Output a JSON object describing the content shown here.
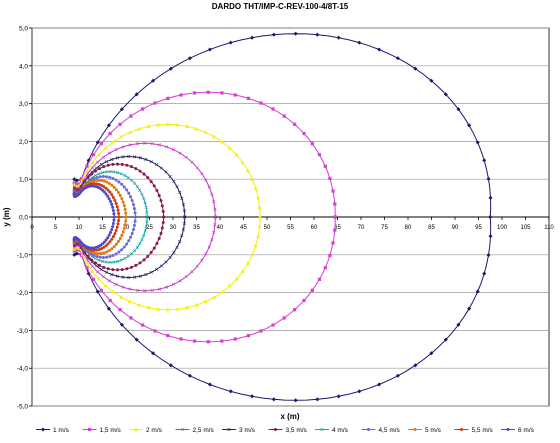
{
  "chart_data": {
    "type": "line",
    "title": "DARDO THT/IMP-C-REV-100-4/8T-15",
    "xlabel": "x (m)",
    "ylabel": "y (m)",
    "xlim": [
      0,
      110
    ],
    "ylim": [
      -5.0,
      5.0
    ],
    "x_ticks": [
      "0",
      "5",
      "10",
      "15",
      "20",
      "25",
      "30",
      "35",
      "40",
      "45",
      "50",
      "55",
      "60",
      "65",
      "70",
      "75",
      "80",
      "85",
      "90",
      "95",
      "100",
      "105",
      "110"
    ],
    "y_ticks": [
      "5,0",
      "4,0",
      "3,0",
      "2,0",
      "1,0",
      "0,0",
      "-1,0",
      "-2,0",
      "-3,0",
      "-4,0",
      "-5,0"
    ],
    "grid": "horizontal",
    "legend_position": "bottom",
    "series": [
      {
        "name": "1 m/s",
        "color": "#1a1a6e",
        "marker": "diamond",
        "x_start": 9,
        "y_start": 1.0,
        "x_max": 97.5,
        "x_at_y_max": 58,
        "y_max": 4.85
      },
      {
        "name": "1,5 m/s",
        "color": "#d43fd4",
        "marker": "square",
        "x_start": 9,
        "y_start": 0.9,
        "x_max": 64.5,
        "x_at_y_max": 38,
        "y_max": 3.3
      },
      {
        "name": "2 m/s",
        "color": "#f2f20a",
        "marker": "triangle",
        "x_start": 9,
        "y_start": 0.85,
        "x_max": 48.5,
        "x_at_y_max": 29,
        "y_max": 2.45
      },
      {
        "name": "2,5 m/s",
        "color": "#c03cc0",
        "marker": "x",
        "x_start": 9,
        "y_start": 0.8,
        "x_max": 39,
        "x_at_y_max": 24,
        "y_max": 1.95
      },
      {
        "name": "3 m/s",
        "color": "#2a2060",
        "marker": "asterisk",
        "x_start": 9,
        "y_start": 0.75,
        "x_max": 32.5,
        "x_at_y_max": 20.5,
        "y_max": 1.6
      },
      {
        "name": "3,5 m/s",
        "color": "#8a1a4a",
        "marker": "circle",
        "x_start": 9,
        "y_start": 0.72,
        "x_max": 28,
        "x_at_y_max": 18,
        "y_max": 1.4
      },
      {
        "name": "4 m/s",
        "color": "#1ea6a6",
        "marker": "plus",
        "x_start": 9,
        "y_start": 0.7,
        "x_max": 24.5,
        "x_at_y_max": 16.5,
        "y_max": 1.2
      },
      {
        "name": "4,5 m/s",
        "color": "#6a6ad8",
        "marker": "line",
        "x_start": 9,
        "y_start": 0.68,
        "x_max": 22,
        "x_at_y_max": 15,
        "y_max": 1.07
      },
      {
        "name": "5 m/s",
        "color": "#e07a10",
        "marker": "line",
        "x_start": 9,
        "y_start": 0.66,
        "x_max": 20,
        "x_at_y_max": 14,
        "y_max": 0.97
      },
      {
        "name": "5,5 m/s",
        "color": "#d03a10",
        "marker": "circle",
        "x_start": 9,
        "y_start": 0.64,
        "x_max": 18.5,
        "x_at_y_max": 13,
        "y_max": 0.88
      },
      {
        "name": "6 m/s",
        "color": "#4a4ad0",
        "marker": "line",
        "x_start": 9,
        "y_start": 0.62,
        "x_max": 17.5,
        "x_at_y_max": 12.5,
        "y_max": 0.82
      }
    ]
  }
}
